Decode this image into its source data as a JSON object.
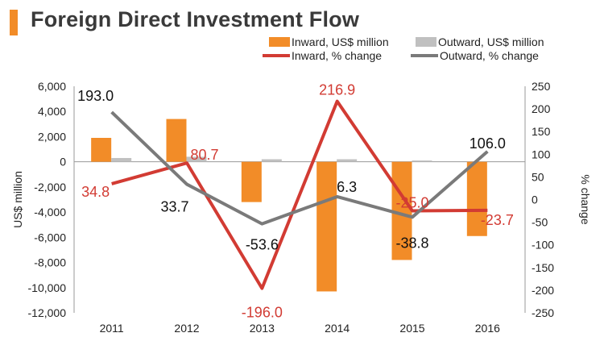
{
  "header": {
    "title": "Foreign Direct Investment Flow"
  },
  "colors": {
    "accent": "#f28c28",
    "inward_bar": "#f28c28",
    "outward_bar": "#c0c0c0",
    "inward_line": "#d23b33",
    "outward_line": "#7a7a7a",
    "text": "#222222"
  },
  "chart_data": {
    "type": "bar+line",
    "title": "Foreign Direct Investment Flow",
    "categories": [
      "2011",
      "2012",
      "2013",
      "2014",
      "2015",
      "2016"
    ],
    "left_axis": {
      "label": "US$ million",
      "ticks": [
        "6,000",
        "4,000",
        "2,000",
        "0",
        "-2,000",
        "-4,000",
        "-6,000",
        "-8,000",
        "-10,000",
        "-12,000"
      ],
      "min": -12000,
      "max": 6000
    },
    "right_axis": {
      "label": "% change",
      "ticks": [
        "250",
        "200",
        "150",
        "100",
        "50",
        "0",
        "-50",
        "-100",
        "-150",
        "-200",
        "-250"
      ],
      "min": -250,
      "max": 250
    },
    "bar_series": [
      {
        "name": "Inward, US$ million",
        "values": [
          1900,
          3400,
          -3200,
          -10300,
          -7800,
          -5900
        ]
      },
      {
        "name": "Outward, US$ million",
        "values": [
          300,
          400,
          200,
          200,
          100,
          0
        ]
      }
    ],
    "line_series": [
      {
        "name": "Inward, % change",
        "values": [
          34.8,
          80.7,
          -196.0,
          216.9,
          -25.0,
          -23.7
        ],
        "labels": [
          "34.8",
          "80.7",
          "-196.0",
          "216.9",
          "-25.0",
          "-23.7"
        ]
      },
      {
        "name": "Outward, % change",
        "values": [
          193.0,
          33.7,
          -53.6,
          6.3,
          -38.8,
          106.0
        ],
        "labels": [
          "193.0",
          "33.7",
          "-53.6",
          "6.3",
          "-38.8",
          "106.0"
        ]
      }
    ],
    "legend": [
      {
        "name": "Inward, US$ million",
        "kind": "bar"
      },
      {
        "name": "Outward, US$ million",
        "kind": "bar"
      },
      {
        "name": "Inward, % change",
        "kind": "line"
      },
      {
        "name": "Outward, % change",
        "kind": "line"
      }
    ],
    "legend_position": "top-right"
  }
}
